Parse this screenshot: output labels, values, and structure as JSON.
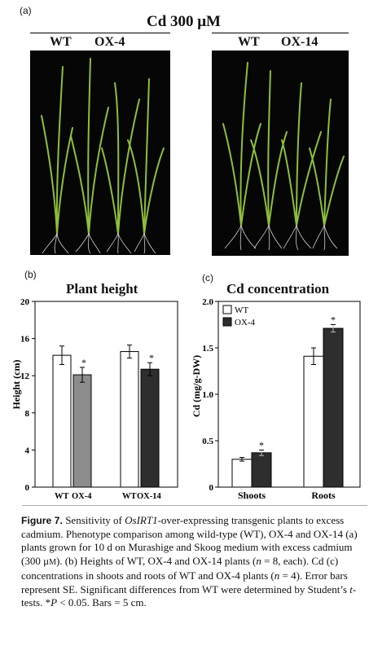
{
  "panel_a": {
    "label": "(a)",
    "title": "Cd 300 μM",
    "left_photo_labels": [
      "WT",
      "OX-4"
    ],
    "right_photo_labels": [
      "WT",
      "OX-14"
    ]
  },
  "panel_b": {
    "label": "(b)",
    "title": "Plant height",
    "ylabel": "Height (cm)",
    "group_labels": [
      "WT OX-4",
      "WT OX-14"
    ],
    "bar_labels": [
      "WT",
      "OX-4",
      "WT",
      "OX-14"
    ]
  },
  "panel_c": {
    "label": "(c)",
    "title": "Cd concentration",
    "ylabel": "Cd (mg/g-DW)",
    "legend": [
      "WT",
      "OX-4"
    ]
  },
  "chart_data": [
    {
      "type": "bar",
      "title": "Plant height",
      "ylabel": "Height (cm)",
      "ylim": [
        0,
        20
      ],
      "yticks": [
        0,
        4,
        8,
        12,
        16,
        20
      ],
      "categories": [
        "WT",
        "OX-4",
        "WT",
        "OX-14"
      ],
      "values": [
        14.2,
        12.1,
        14.6,
        12.7
      ],
      "errors": [
        1.0,
        0.8,
        0.7,
        0.7
      ],
      "significant": [
        false,
        true,
        false,
        true
      ],
      "colors": [
        "#ffffff",
        "#8c8c8c",
        "#ffffff",
        "#2e2e2e"
      ]
    },
    {
      "type": "bar",
      "title": "Cd concentration",
      "ylabel": "Cd (mg/g-DW)",
      "ylim": [
        0,
        2.0
      ],
      "yticks": [
        0,
        0.5,
        1.0,
        1.5,
        2.0
      ],
      "categories": [
        "Shoots",
        "Roots"
      ],
      "series": [
        {
          "name": "WT",
          "values": [
            0.3,
            1.41
          ],
          "errors": [
            0.02,
            0.09
          ],
          "color": "#ffffff"
        },
        {
          "name": "OX-4",
          "values": [
            0.37,
            1.71
          ],
          "errors": [
            0.03,
            0.04
          ],
          "color": "#2e2e2e"
        }
      ],
      "significant": {
        "OX-4": [
          true,
          true
        ]
      },
      "legend_position": "top-left"
    }
  ],
  "caption": {
    "figure": "Figure 7.",
    "text_html": "Sensitivity of <i>OsIRT1</i>-over-expressing transgenic plants to excess cadmium. Phenotype comparison among wild-type (WT), OX-4 and OX-14 (a) plants grown for 10 d on Murashige and Skoog medium with excess cadmium (300 μ<span style='font-size:10px'>M</span>). (b) Heights of WT, OX-4 and OX-14 plants (<i>n</i> = 8, each). Cd (c) concentrations in shoots and roots of WT and OX-4 plants (<i>n</i> = 4). Error bars represent SE. Significant differences from WT were determined by Student’s <i>t</i>-tests. *<i>P</i> &lt; 0.05. Bars = 5 cm."
  }
}
